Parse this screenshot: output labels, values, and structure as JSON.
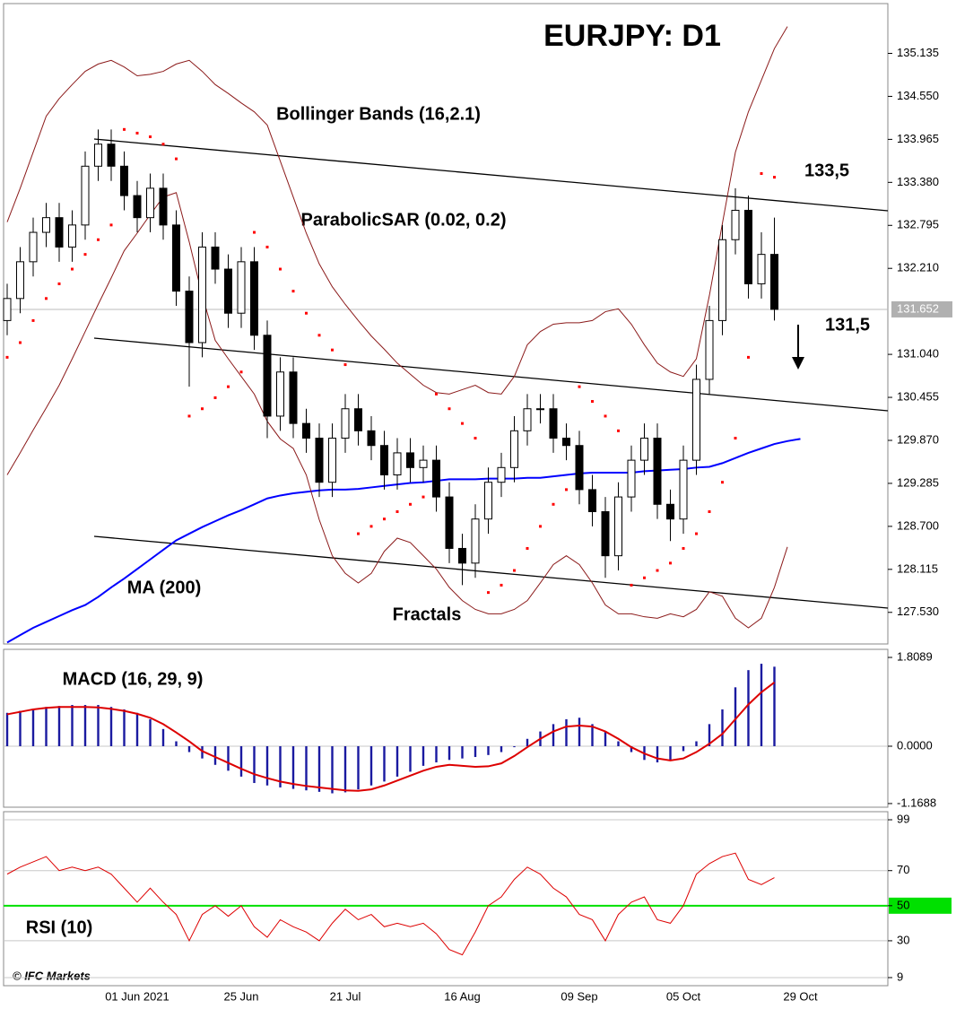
{
  "chart_data": [
    {
      "type": "candlestick",
      "title": "EURJPY: D1",
      "categories": [
        null,
        null,
        null,
        null,
        null,
        null,
        null,
        null,
        null,
        null,
        "01 Jun 2021",
        null,
        null,
        null,
        null,
        null,
        null,
        null,
        "25 Jun",
        null,
        null,
        null,
        null,
        null,
        null,
        null,
        "21 Jul",
        null,
        null,
        null,
        null,
        null,
        null,
        null,
        null,
        "16 Aug",
        null,
        null,
        null,
        null,
        null,
        null,
        null,
        null,
        "09 Sep",
        null,
        null,
        null,
        null,
        null,
        null,
        null,
        "05 Oct",
        null,
        null,
        null,
        null,
        null,
        null,
        null,
        null,
        "29 Oct"
      ],
      "open": [
        131.5,
        131.8,
        132.3,
        132.7,
        132.9,
        132.5,
        132.8,
        133.6,
        133.9,
        133.6,
        133.2,
        132.9,
        133.3,
        132.8,
        131.9,
        131.2,
        132.5,
        132.2,
        131.6,
        132.3,
        131.3,
        130.2,
        130.8,
        130.1,
        129.9,
        129.3,
        129.9,
        130.3,
        130.0,
        129.8,
        129.4,
        129.7,
        129.5,
        129.6,
        129.1,
        128.4,
        128.2,
        128.8,
        129.3,
        129.5,
        130.0,
        130.3,
        130.3,
        129.9,
        129.8,
        129.2,
        128.9,
        128.3,
        129.1,
        129.6,
        129.9,
        129.0,
        128.8,
        129.6,
        130.7,
        131.5,
        132.6,
        133.0,
        132.0,
        132.4,
        null,
        null
      ],
      "high": [
        132.0,
        132.5,
        132.9,
        133.1,
        133.1,
        133.0,
        133.8,
        134.1,
        134.1,
        133.8,
        133.4,
        133.5,
        133.5,
        133.0,
        132.1,
        132.7,
        132.7,
        132.4,
        132.5,
        132.5,
        131.5,
        131.0,
        131.0,
        130.3,
        130.1,
        130.1,
        130.5,
        130.5,
        130.2,
        130.0,
        129.9,
        129.9,
        129.8,
        129.8,
        129.3,
        128.6,
        129.0,
        129.5,
        129.7,
        130.2,
        130.5,
        130.5,
        130.5,
        130.1,
        130.0,
        129.4,
        129.1,
        129.3,
        129.8,
        130.1,
        130.1,
        129.2,
        129.8,
        130.9,
        131.7,
        132.8,
        133.3,
        133.2,
        132.7,
        132.9,
        null,
        null
      ],
      "low": [
        131.3,
        131.6,
        132.1,
        132.5,
        132.3,
        132.3,
        132.6,
        133.4,
        133.4,
        133.0,
        132.7,
        132.7,
        132.6,
        131.7,
        130.6,
        131.0,
        132.0,
        131.4,
        131.4,
        131.1,
        129.9,
        130.0,
        129.9,
        129.7,
        129.1,
        129.1,
        129.7,
        129.8,
        129.6,
        129.2,
        129.2,
        129.3,
        129.3,
        128.9,
        128.2,
        127.9,
        128.0,
        128.6,
        129.1,
        129.3,
        129.8,
        130.1,
        129.7,
        129.6,
        129.0,
        128.7,
        128.0,
        128.1,
        128.9,
        129.4,
        128.8,
        128.5,
        128.6,
        129.4,
        130.5,
        131.3,
        132.4,
        131.8,
        131.8,
        131.5,
        null,
        null
      ],
      "close": [
        131.8,
        132.3,
        132.7,
        132.9,
        132.5,
        132.8,
        133.6,
        133.9,
        133.6,
        133.2,
        132.9,
        133.3,
        132.8,
        131.9,
        131.2,
        132.5,
        132.2,
        131.6,
        132.3,
        131.3,
        130.2,
        130.8,
        130.1,
        129.9,
        129.3,
        129.9,
        130.3,
        130.0,
        129.8,
        129.4,
        129.7,
        129.5,
        129.6,
        129.1,
        128.4,
        128.2,
        128.8,
        129.3,
        129.5,
        130.0,
        130.3,
        130.3,
        129.9,
        129.8,
        129.2,
        128.9,
        128.3,
        129.1,
        129.6,
        129.9,
        129.0,
        128.8,
        129.6,
        130.7,
        131.5,
        132.6,
        133.0,
        132.0,
        132.4,
        131.652,
        null,
        null
      ],
      "up_color": "#ffffff",
      "down_color": "#000000",
      "series": [
        {
          "name": "MA (200)",
          "color": "#0000ff",
          "values": [
            127.12,
            127.22,
            127.32,
            127.4,
            127.48,
            127.56,
            127.63,
            127.74,
            127.87,
            127.99,
            128.12,
            128.25,
            128.38,
            128.51,
            128.6,
            128.69,
            128.77,
            128.85,
            128.92,
            129.0,
            129.08,
            129.12,
            129.15,
            129.17,
            129.19,
            129.2,
            129.2,
            129.21,
            129.23,
            129.25,
            129.27,
            129.29,
            129.3,
            129.32,
            129.34,
            129.34,
            129.34,
            129.35,
            129.35,
            129.35,
            129.36,
            129.36,
            129.38,
            129.4,
            129.42,
            129.43,
            129.43,
            129.43,
            129.43,
            129.45,
            129.46,
            129.47,
            129.48,
            129.5,
            129.51,
            129.56,
            129.63,
            129.7,
            129.76,
            129.82,
            129.86,
            129.89
          ]
        },
        {
          "name": "Bollinger Bands (16,2.1)",
          "color": "#8b1a1a",
          "values": [
            132.84,
            133.3,
            133.79,
            134.28,
            134.52,
            134.71,
            134.89,
            134.99,
            135.04,
            134.95,
            134.83,
            134.85,
            134.89,
            134.99,
            135.04,
            134.89,
            134.71,
            134.59,
            134.46,
            134.34,
            134.16,
            133.67,
            133.18,
            132.69,
            132.27,
            131.96,
            131.72,
            131.5,
            131.29,
            131.11,
            130.92,
            130.77,
            130.62,
            130.52,
            130.5,
            130.56,
            130.62,
            130.52,
            130.5,
            130.74,
            131.17,
            131.35,
            131.45,
            131.47,
            131.47,
            131.5,
            131.62,
            131.66,
            131.45,
            131.17,
            130.92,
            130.8,
            130.74,
            130.98,
            131.84,
            132.82,
            133.79,
            134.34,
            134.77,
            135.2,
            135.5,
            null
          ]
        },
        {
          "color": "#8b1a1a",
          "values": [
            129.4,
            129.7,
            130.01,
            130.31,
            130.62,
            130.98,
            131.35,
            131.72,
            132.08,
            132.45,
            132.69,
            132.94,
            133.18,
            133.24,
            132.57,
            131.84,
            131.23,
            130.98,
            130.74,
            130.5,
            130.13,
            129.89,
            129.76,
            129.4,
            128.79,
            128.3,
            128.06,
            127.93,
            128.06,
            128.36,
            128.54,
            128.48,
            128.3,
            128.12,
            127.87,
            127.69,
            127.57,
            127.51,
            127.51,
            127.57,
            127.69,
            127.93,
            128.18,
            128.3,
            128.18,
            127.93,
            127.63,
            127.51,
            127.51,
            127.47,
            127.45,
            127.51,
            127.47,
            127.57,
            127.81,
            127.75,
            127.45,
            127.32,
            127.45,
            127.87,
            128.42,
            null
          ]
        },
        {
          "name": "ParabolicSAR (0.02, 0.2)",
          "color": "#ff0000",
          "style": "dots",
          "values": [
            131.0,
            131.2,
            131.5,
            131.8,
            132.0,
            132.2,
            132.4,
            132.6,
            132.8,
            134.1,
            134.05,
            134.0,
            133.9,
            133.7,
            130.2,
            130.3,
            130.45,
            130.6,
            130.8,
            132.7,
            132.5,
            132.2,
            131.9,
            131.6,
            131.3,
            131.1,
            130.9,
            128.6,
            128.7,
            128.8,
            128.9,
            129.0,
            129.1,
            130.5,
            130.3,
            130.1,
            129.9,
            127.8,
            127.9,
            128.1,
            128.4,
            128.7,
            129.0,
            129.2,
            130.6,
            130.4,
            130.2,
            130.0,
            127.9,
            128.0,
            128.1,
            128.2,
            128.4,
            128.6,
            128.9,
            129.3,
            129.9,
            131.0,
            133.5,
            133.45,
            null,
            null
          ]
        }
      ],
      "annotations": [
        "Fractals",
        "133,5",
        "131,5"
      ],
      "current": 131.652,
      "ylim": [
        127.1,
        135.8
      ],
      "yticks": [
        135.135,
        {
          "value": 134.55,
          "label": "134.550"
        },
        133.965,
        {
          "value": 133.38,
          "label": "133.380"
        },
        132.795,
        {
          "value": 132.21,
          "label": "132.210"
        },
        {
          "value": 131.04,
          "label": "131.040"
        },
        130.455,
        {
          "value": 129.87,
          "label": "129.870"
        },
        129.285,
        {
          "value": 128.7,
          "label": "128.700"
        },
        128.115,
        {
          "value": 127.53,
          "label": "127.530"
        }
      ],
      "source": "© IFC Markets"
    },
    {
      "type": "macd",
      "title": "MACD (16, 29, 9)",
      "histogram": {
        "color": "#1a1aa0",
        "values": [
          0.68,
          0.72,
          0.76,
          0.8,
          0.82,
          0.84,
          0.84,
          0.84,
          0.8,
          0.75,
          0.68,
          0.55,
          0.35,
          0.1,
          -0.12,
          -0.25,
          -0.38,
          -0.5,
          -0.62,
          -0.75,
          -0.8,
          -0.84,
          -0.87,
          -0.9,
          -0.93,
          -0.96,
          -0.94,
          -0.88,
          -0.8,
          -0.72,
          -0.62,
          -0.52,
          -0.4,
          -0.33,
          -0.28,
          -0.25,
          -0.22,
          -0.18,
          -0.12,
          -0.02,
          0.15,
          0.3,
          0.45,
          0.55,
          0.58,
          0.45,
          0.3,
          0.1,
          -0.12,
          -0.28,
          -0.33,
          -0.3,
          -0.1,
          0.1,
          0.45,
          0.75,
          1.2,
          1.55,
          1.68,
          1.62
        ]
      },
      "signal": {
        "color": "#dd0000",
        "values": [
          0.65,
          0.7,
          0.75,
          0.78,
          0.8,
          0.8,
          0.8,
          0.79,
          0.76,
          0.72,
          0.66,
          0.58,
          0.45,
          0.28,
          0.1,
          -0.1,
          -0.22,
          -0.34,
          -0.46,
          -0.57,
          -0.65,
          -0.72,
          -0.77,
          -0.81,
          -0.84,
          -0.87,
          -0.9,
          -0.91,
          -0.88,
          -0.8,
          -0.7,
          -0.6,
          -0.5,
          -0.42,
          -0.38,
          -0.4,
          -0.42,
          -0.41,
          -0.35,
          -0.2,
          -0.02,
          0.15,
          0.3,
          0.4,
          0.42,
          0.4,
          0.3,
          0.15,
          -0.02,
          -0.15,
          -0.25,
          -0.29,
          -0.25,
          -0.12,
          0.05,
          0.25,
          0.55,
          0.85,
          1.1,
          1.3
        ]
      },
      "ylim": [
        -1.243,
        1.937
      ],
      "yticks": [
        1.8089,
        {
          "value": 0,
          "label": "0.0000"
        },
        -1.1688
      ]
    },
    {
      "type": "line",
      "title": "RSI (10)",
      "color": "#dd0000",
      "values": [
        68,
        72,
        75,
        78,
        70,
        72,
        70,
        72,
        68,
        60,
        52,
        60,
        52,
        45,
        30,
        45,
        50,
        44,
        50,
        38,
        32,
        42,
        38,
        35,
        30,
        40,
        48,
        42,
        45,
        38,
        40,
        38,
        40,
        34,
        25,
        22,
        35,
        50,
        55,
        65,
        72,
        68,
        60,
        55,
        45,
        42,
        30,
        45,
        52,
        55,
        42,
        40,
        50,
        68,
        74,
        78,
        80,
        65,
        62,
        66
      ],
      "level": 50,
      "level_color": "#00e000",
      "ylim": [
        4.9,
        103.1
      ],
      "yticks": [
        99,
        70,
        50,
        30,
        9
      ],
      "grid": true
    }
  ]
}
